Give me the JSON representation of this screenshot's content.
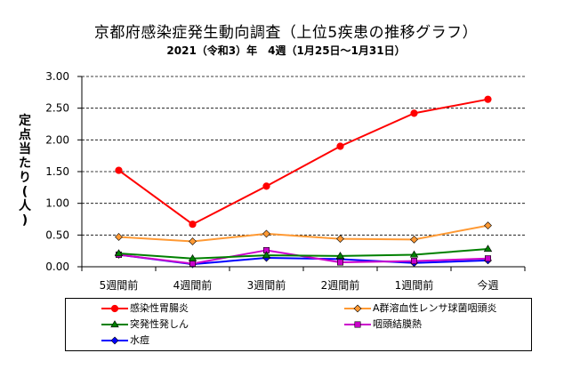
{
  "title": "京都府感染症発生動向調査（上位5疾患の推移グラフ）",
  "subtitle": "2021（令和3）年　4週（1月25日～1月31日）",
  "chart_data": {
    "type": "line",
    "ylabel": "定点当たり(人)",
    "ylim": [
      0,
      3.0
    ],
    "yticks": [
      "0.00",
      "0.50",
      "1.00",
      "1.50",
      "2.00",
      "2.50",
      "3.00"
    ],
    "categories": [
      "5週間前",
      "4週間前",
      "3週間前",
      "2週間前",
      "1週間前",
      "今週"
    ],
    "grid": "horizontal-dashed",
    "legend_position": "bottom",
    "series": [
      {
        "name": "感染性胃腸炎",
        "color": "#ff0000",
        "marker": "circle",
        "values": [
          1.52,
          0.67,
          1.27,
          1.9,
          2.42,
          2.64
        ]
      },
      {
        "name": "A群溶血性レンサ球菌咽頭炎",
        "color": "#ff9933",
        "marker": "diamond",
        "values": [
          0.47,
          0.4,
          0.52,
          0.44,
          0.43,
          0.65
        ]
      },
      {
        "name": "突発性発しん",
        "color": "#008000",
        "marker": "triangle",
        "values": [
          0.21,
          0.13,
          0.18,
          0.17,
          0.19,
          0.28
        ]
      },
      {
        "name": "咽頭結膜熱",
        "color": "#cc00cc",
        "marker": "square",
        "values": [
          0.19,
          0.05,
          0.26,
          0.07,
          0.09,
          0.13
        ]
      },
      {
        "name": "水痘",
        "color": "#0000ff",
        "marker": "diamond",
        "values": [
          0.19,
          0.04,
          0.14,
          0.12,
          0.06,
          0.1
        ]
      }
    ]
  }
}
